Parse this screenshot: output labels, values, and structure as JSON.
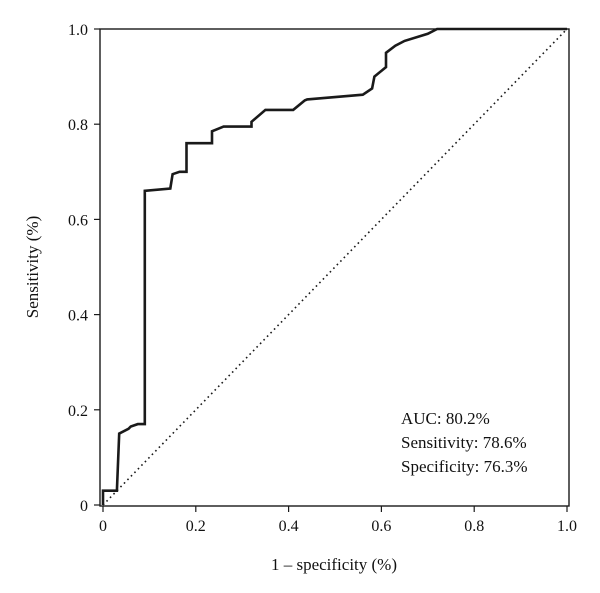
{
  "chart_data": {
    "type": "line",
    "xlabel": "1 – specificity (%)",
    "ylabel": "Sensitivity (%)",
    "xlim": [
      0,
      1
    ],
    "ylim": [
      0,
      1
    ],
    "x_ticks": [
      {
        "value": 0,
        "label": "0"
      },
      {
        "value": 0.2,
        "label": "0.2"
      },
      {
        "value": 0.4,
        "label": "0.4"
      },
      {
        "value": 0.6,
        "label": "0.6"
      },
      {
        "value": 0.8,
        "label": "0.8"
      },
      {
        "value": 1.0,
        "label": "1.0"
      }
    ],
    "y_ticks": [
      {
        "value": 0,
        "label": "0"
      },
      {
        "value": 0.2,
        "label": "0.2"
      },
      {
        "value": 0.4,
        "label": "0.4"
      },
      {
        "value": 0.6,
        "label": "0.6"
      },
      {
        "value": 0.8,
        "label": "0.8"
      },
      {
        "value": 1.0,
        "label": "1.0"
      }
    ],
    "grid": false,
    "series": [
      {
        "style": "solid",
        "color": "#1a1a1a",
        "points": [
          [
            0,
            0
          ],
          [
            0,
            0.03
          ],
          [
            0.03,
            0.03
          ],
          [
            0.035,
            0.15
          ],
          [
            0.055,
            0.16
          ],
          [
            0.06,
            0.165
          ],
          [
            0.075,
            0.17
          ],
          [
            0.09,
            0.17
          ],
          [
            0.09,
            0.66
          ],
          [
            0.145,
            0.665
          ],
          [
            0.15,
            0.695
          ],
          [
            0.165,
            0.7
          ],
          [
            0.18,
            0.7
          ],
          [
            0.18,
            0.76
          ],
          [
            0.235,
            0.76
          ],
          [
            0.235,
            0.785
          ],
          [
            0.26,
            0.795
          ],
          [
            0.32,
            0.795
          ],
          [
            0.32,
            0.805
          ],
          [
            0.35,
            0.83
          ],
          [
            0.41,
            0.83
          ],
          [
            0.435,
            0.85
          ],
          [
            0.44,
            0.852
          ],
          [
            0.56,
            0.862
          ],
          [
            0.58,
            0.875
          ],
          [
            0.585,
            0.9
          ],
          [
            0.61,
            0.92
          ],
          [
            0.61,
            0.95
          ],
          [
            0.63,
            0.965
          ],
          [
            0.65,
            0.975
          ],
          [
            0.7,
            0.99
          ],
          [
            0.72,
            1.0
          ],
          [
            1.0,
            1.0
          ]
        ]
      },
      {
        "style": "dotted",
        "color": "#1a1a1a",
        "points": [
          [
            0,
            0
          ],
          [
            1,
            1
          ]
        ]
      }
    ],
    "annotations": [
      "AUC: 80.2%",
      "Sensitivity: 78.6%",
      "Specificity: 76.3%"
    ]
  }
}
